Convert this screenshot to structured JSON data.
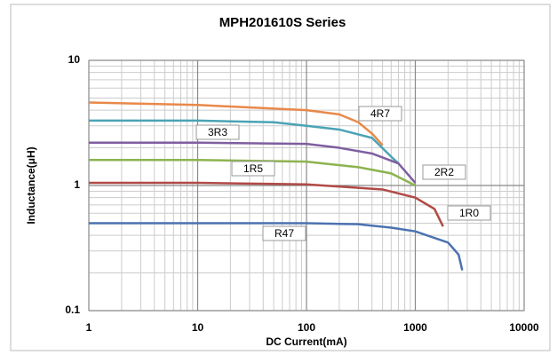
{
  "chart_data": {
    "type": "line",
    "title": "MPH201610S Series",
    "x_label": "DC Current(mA)",
    "y_label": "Inductance(μH)",
    "xscale": "log",
    "yscale": "log",
    "grid": true,
    "xlim": [
      1,
      10000
    ],
    "xticks": [
      1,
      10,
      100,
      1000,
      10000
    ],
    "ylim": [
      0.1,
      10
    ],
    "yticks": [
      0.1,
      1,
      10
    ],
    "series": [
      {
        "name": "4R7",
        "color": "#e8894a",
        "x": [
          1,
          10,
          100,
          200,
          300,
          400,
          500
        ],
        "values": [
          4.6,
          4.4,
          4.0,
          3.7,
          3.2,
          2.6,
          2.1
        ]
      },
      {
        "name": "3R3",
        "color": "#4aa3b5",
        "x": [
          1,
          10,
          50,
          100,
          200,
          400,
          600,
          700
        ],
        "values": [
          3.3,
          3.3,
          3.2,
          3.0,
          2.8,
          2.4,
          1.7,
          1.5
        ]
      },
      {
        "name": "2R2",
        "color": "#7e5ea0",
        "x": [
          1,
          10,
          100,
          200,
          400,
          700,
          1000
        ],
        "values": [
          2.2,
          2.2,
          2.15,
          2.0,
          1.8,
          1.5,
          1.05
        ]
      },
      {
        "name": "1R5",
        "color": "#8db34f",
        "x": [
          1,
          10,
          100,
          300,
          600,
          1000
        ],
        "values": [
          1.6,
          1.6,
          1.55,
          1.4,
          1.25,
          1.0
        ]
      },
      {
        "name": "1R0",
        "color": "#b04a45",
        "x": [
          1,
          10,
          100,
          500,
          1000,
          1500,
          1800
        ],
        "values": [
          1.05,
          1.05,
          1.02,
          0.93,
          0.8,
          0.65,
          0.47
        ]
      },
      {
        "name": "R47",
        "color": "#4b72b0",
        "x": [
          1,
          10,
          100,
          300,
          600,
          1000,
          2000,
          2500,
          2700
        ],
        "values": [
          0.5,
          0.5,
          0.5,
          0.49,
          0.46,
          0.43,
          0.35,
          0.28,
          0.21
        ]
      }
    ]
  }
}
